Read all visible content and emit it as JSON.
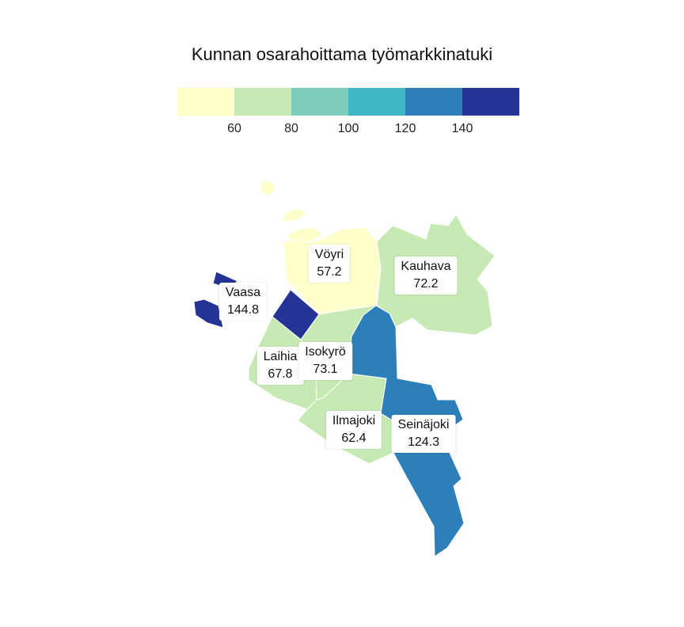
{
  "title": "Kunnan osarahoittama työmarkkinatuki",
  "legend": {
    "colors": [
      "#ffffcc",
      "#c7e9b4",
      "#7fcdbb",
      "#41b6c4",
      "#2c7fb8",
      "#253494"
    ],
    "ticks": [
      "60",
      "80",
      "100",
      "120",
      "140"
    ]
  },
  "municipalities": [
    {
      "name": "Vöyri",
      "value": "57.2",
      "color": "#ffffcc"
    },
    {
      "name": "Kauhava",
      "value": "72.2",
      "color": "#c7e9b4"
    },
    {
      "name": "Vaasa",
      "value": "144.8",
      "color": "#253494"
    },
    {
      "name": "Laihia",
      "value": "67.8",
      "color": "#c7e9b4"
    },
    {
      "name": "Isokyrö",
      "value": "73.1",
      "color": "#c7e9b4"
    },
    {
      "name": "Ilmajoki",
      "value": "62.4",
      "color": "#c7e9b4"
    },
    {
      "name": "Seinäjoki",
      "value": "124.3",
      "color": "#2c7fb8"
    }
  ]
}
